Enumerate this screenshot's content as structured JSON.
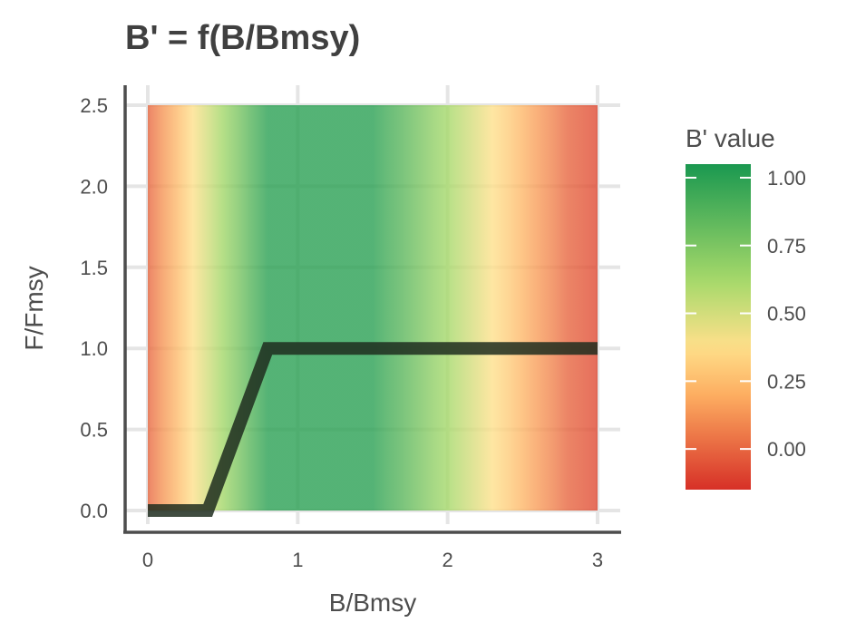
{
  "chart_data": {
    "type": "heatmap",
    "title": "B' = f(B/Bmsy)",
    "xlabel": "B/Bmsy",
    "ylabel": "F/Fmsy",
    "xlim": [
      0,
      3
    ],
    "ylim": [
      0,
      2.5
    ],
    "x_ticks": [
      0,
      1,
      2,
      3
    ],
    "x_tick_labels": [
      "0",
      "1",
      "2",
      "3"
    ],
    "y_ticks": [
      0,
      0.5,
      1,
      1.5,
      2,
      2.5
    ],
    "y_tick_labels": [
      "0.0",
      "0.5",
      "1.0",
      "1.5",
      "2.0",
      "2.5"
    ],
    "grid": true,
    "heatmap": {
      "description_axis": "x",
      "x": [
        0,
        0.1,
        0.2,
        0.3,
        0.4,
        0.5,
        0.6,
        0.7,
        0.8,
        0.9,
        1.0,
        1.1,
        1.2,
        1.3,
        1.4,
        1.5,
        1.6,
        1.7,
        1.8,
        1.9,
        2.0,
        2.1,
        2.2,
        2.3,
        2.4,
        2.5,
        2.6,
        2.7,
        2.8,
        2.9,
        3.0
      ],
      "values": [
        0.0,
        0.13,
        0.25,
        0.38,
        0.5,
        0.63,
        0.75,
        0.88,
        1.0,
        1.0,
        1.0,
        1.0,
        1.0,
        1.0,
        1.0,
        1.0,
        0.92,
        0.85,
        0.77,
        0.69,
        0.62,
        0.54,
        0.46,
        0.38,
        0.31,
        0.23,
        0.15,
        0.08,
        0.0,
        -0.04,
        -0.08
      ]
    },
    "series": [
      {
        "type": "line",
        "x": [
          0,
          0.4,
          0.8,
          3.0
        ],
        "y": [
          0,
          0,
          1,
          1
        ]
      }
    ],
    "legend": {
      "title": "B' value",
      "position": "right",
      "range": [
        -0.15,
        1.05
      ],
      "ticks": [
        0,
        0.25,
        0.5,
        0.75,
        1.0
      ],
      "tick_labels": [
        "0.00",
        "0.25",
        "0.50",
        "0.75",
        "1.00"
      ]
    },
    "colors": {
      "low": "#d73027",
      "mid_low": "#fdae61",
      "mid": "#fee08b",
      "mid_high": "#a6d96a",
      "high": "#1a9850",
      "line": "#1f2d1f"
    }
  }
}
